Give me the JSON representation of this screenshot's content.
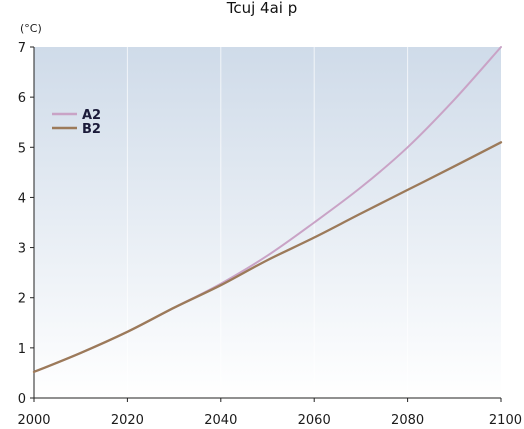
{
  "chart_data": {
    "type": "line",
    "title": "Tcuj 4ai p",
    "ylabel": "(°C)",
    "xlabel": "",
    "xlim": [
      2000,
      2100
    ],
    "ylim": [
      0,
      7
    ],
    "x_ticks": [
      "2000",
      "2020",
      "2040",
      "2060",
      "2080",
      "2100"
    ],
    "y_ticks": [
      "0",
      "1",
      "2",
      "3",
      "4",
      "5",
      "6",
      "7"
    ],
    "grid": "vertical, faint",
    "legend_position": "top-left",
    "series": [
      {
        "name": "A2",
        "color": "#c9a3c6",
        "x": [
          2000,
          2010,
          2020,
          2030,
          2040,
          2050,
          2060,
          2070,
          2080,
          2090,
          2100
        ],
        "y": [
          0.52,
          0.9,
          1.32,
          1.8,
          2.28,
          2.84,
          3.5,
          4.2,
          5.0,
          5.95,
          7.0
        ]
      },
      {
        "name": "B2",
        "color": "#9c7a5a",
        "x": [
          2000,
          2010,
          2020,
          2030,
          2040,
          2050,
          2060,
          2070,
          2080,
          2090,
          2100
        ],
        "y": [
          0.52,
          0.9,
          1.32,
          1.8,
          2.25,
          2.75,
          3.2,
          3.68,
          4.15,
          4.62,
          5.1
        ]
      }
    ]
  }
}
